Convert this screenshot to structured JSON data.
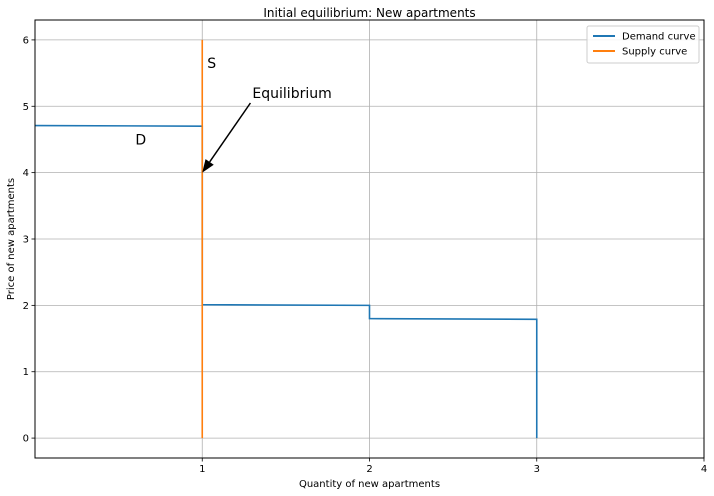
{
  "chart_data": {
    "type": "line",
    "title": "Initial equilibrium: New apartments",
    "xlabel": "Quantity of new apartments",
    "ylabel": "Price of new apartments",
    "xlim": [
      0,
      4
    ],
    "ylim": [
      -0.3,
      6.3
    ],
    "xticks": [
      "1",
      "2",
      "3",
      "4"
    ],
    "yticks": [
      "0",
      "1",
      "2",
      "3",
      "4",
      "5",
      "6"
    ],
    "grid": true,
    "legend_position": "top-right",
    "series": [
      {
        "name": "Demand curve",
        "color": "#1f77b4",
        "x": [
          0,
          1,
          1,
          2,
          2,
          3,
          3
        ],
        "y": [
          4.71,
          4.7,
          2.01,
          2.0,
          1.8,
          1.79,
          0
        ]
      },
      {
        "name": "Supply curve",
        "color": "#ff7f0e",
        "x": [
          1,
          1
        ],
        "y": [
          0,
          6
        ]
      }
    ],
    "annotations": [
      {
        "text": "S",
        "x": 1.03,
        "y": 5.65
      },
      {
        "text": "D",
        "x": 0.6,
        "y": 4.5
      },
      {
        "text": "Equilibrium",
        "x": 1.3,
        "y": 5.2,
        "arrow_to": [
          1,
          4
        ]
      }
    ]
  }
}
